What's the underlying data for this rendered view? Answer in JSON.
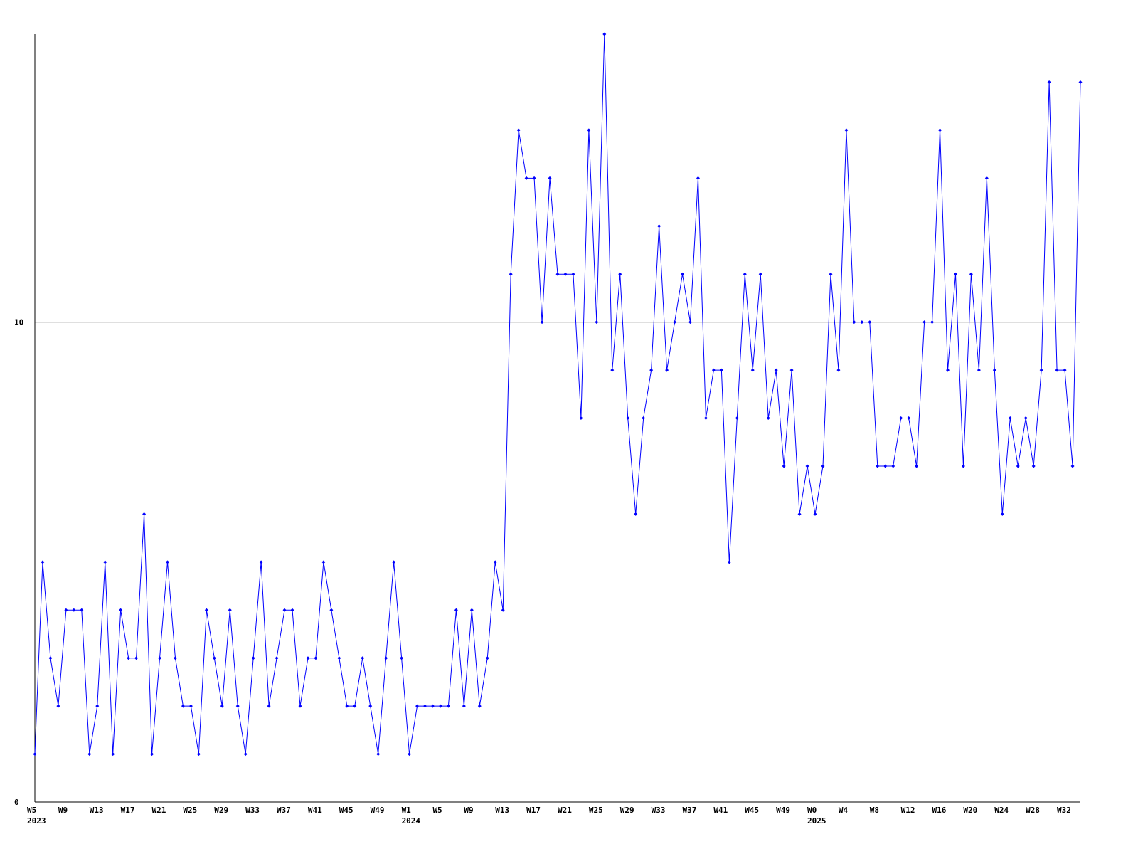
{
  "chart_data": {
    "type": "line",
    "categories": [
      "W5",
      null,
      null,
      null,
      "W9",
      null,
      null,
      null,
      "W13",
      null,
      null,
      null,
      "W17",
      null,
      null,
      null,
      "W21",
      null,
      null,
      null,
      "W25",
      null,
      null,
      null,
      "W29",
      null,
      null,
      null,
      "W33",
      null,
      null,
      null,
      "W37",
      null,
      null,
      null,
      "W41",
      null,
      null,
      null,
      "W45",
      null,
      null,
      null,
      "W49",
      null,
      null,
      null,
      "W1",
      null,
      null,
      null,
      "W5",
      null,
      null,
      null,
      "W9",
      null,
      null,
      null,
      "W13",
      null,
      null,
      null,
      "W17",
      null,
      null,
      null,
      "W21",
      null,
      null,
      null,
      "W25",
      null,
      null,
      null,
      "W29",
      null,
      null,
      null,
      "W33",
      null,
      null,
      null,
      "W37",
      null,
      null,
      null,
      "W41",
      null,
      null,
      null,
      "W45",
      null,
      null,
      null,
      "W49",
      null,
      null,
      null,
      "W0",
      null,
      null,
      null,
      "W4",
      null,
      null,
      null,
      "W8",
      null,
      null,
      null,
      "W12",
      null,
      null,
      null,
      "W16",
      null,
      null,
      null,
      "W20",
      null,
      null,
      null,
      "W24",
      null,
      null,
      null,
      "W28",
      null,
      null,
      null,
      "W32",
      null,
      null
    ],
    "category_groups": [
      "2023",
      null,
      null,
      null,
      null,
      null,
      null,
      null,
      null,
      null,
      null,
      null,
      null,
      null,
      null,
      null,
      null,
      null,
      null,
      null,
      null,
      null,
      null,
      null,
      null,
      null,
      null,
      null,
      null,
      null,
      null,
      null,
      null,
      null,
      null,
      null,
      null,
      null,
      null,
      null,
      null,
      null,
      null,
      null,
      null,
      null,
      null,
      null,
      "2024",
      null,
      null,
      null,
      null,
      null,
      null,
      null,
      null,
      null,
      null,
      null,
      null,
      null,
      null,
      null,
      null,
      null,
      null,
      null,
      null,
      null,
      null,
      null,
      null,
      null,
      null,
      null,
      null,
      null,
      null,
      null,
      null,
      null,
      null,
      null,
      null,
      null,
      null,
      null,
      null,
      null,
      null,
      null,
      null,
      null,
      null,
      null,
      null,
      null,
      null,
      null,
      "2025",
      null,
      null,
      null,
      null,
      null,
      null,
      null,
      null,
      null,
      null,
      null,
      null,
      null,
      null,
      null,
      null,
      null,
      null,
      null,
      null,
      null,
      null,
      null,
      null,
      null,
      null,
      null,
      null,
      null,
      null,
      null,
      null,
      null,
      null
    ],
    "series": [
      {
        "color": "#0000ff",
        "values": [
          1,
          5,
          3,
          2,
          4,
          4,
          4,
          1,
          2,
          5,
          1,
          4,
          3,
          3,
          6,
          1,
          3,
          5,
          3,
          2,
          2,
          1,
          4,
          3,
          2,
          4,
          2,
          1,
          3,
          5,
          2,
          3,
          4,
          4,
          2,
          3,
          3,
          5,
          4,
          3,
          2,
          2,
          3,
          2,
          1,
          3,
          5,
          3,
          1,
          2,
          2,
          2,
          2,
          2,
          4,
          2,
          4,
          2,
          3,
          5,
          4,
          11,
          14,
          13,
          13,
          10,
          13,
          11,
          11,
          11,
          8,
          14,
          10,
          16,
          9,
          11,
          8,
          6,
          8,
          9,
          12,
          9,
          10,
          11,
          10,
          13,
          8,
          9,
          9,
          5,
          8,
          11,
          9,
          11,
          8,
          9,
          7,
          9,
          6,
          7,
          6,
          7,
          11,
          9,
          14,
          10,
          10,
          10,
          7,
          7,
          7,
          8,
          8,
          7,
          10,
          10,
          14,
          9,
          11,
          7,
          11,
          9,
          13,
          9,
          6,
          8,
          7,
          8,
          7,
          9,
          15,
          9,
          9,
          7,
          15
        ]
      }
    ],
    "ylim": [
      0,
      16
    ],
    "yticks": [
      0,
      10
    ],
    "grid": true
  }
}
